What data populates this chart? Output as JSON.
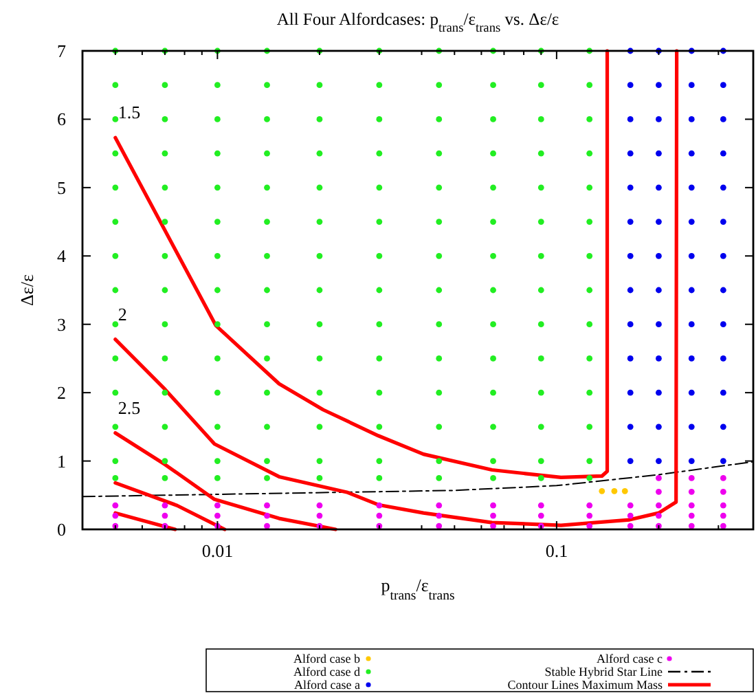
{
  "chart_data": {
    "type": "scatter",
    "title": "All Four Alfordcases: p$_{trans}$/ε$_{trans}$ vs. Δε/ε",
    "xlabel": "p$_{trans}$/ε$_{trans}$",
    "ylabel": "Δε/ε",
    "log": "x",
    "grid": false,
    "legend": "bottom",
    "xlim": [
      0.004,
      0.38
    ],
    "ylim": [
      0,
      7
    ],
    "xticks": [
      {
        "value": 0.005,
        "label": null
      },
      {
        "value": 0.006,
        "label": null
      },
      {
        "value": 0.007,
        "label": null
      },
      {
        "value": 0.008,
        "label": null
      },
      {
        "value": 0.009,
        "label": null
      },
      0.01,
      {
        "value": 0.02,
        "label": null
      },
      {
        "value": 0.03,
        "label": null
      },
      {
        "value": 0.04,
        "label": null
      },
      {
        "value": 0.05,
        "label": null
      },
      {
        "value": 0.06,
        "label": null
      },
      {
        "value": 0.07,
        "label": null
      },
      {
        "value": 0.08,
        "label": null
      },
      {
        "value": 0.09,
        "label": null
      },
      0.1,
      {
        "value": 0.2,
        "label": null
      },
      {
        "value": 0.3,
        "label": null
      }
    ],
    "yticks": [
      0,
      1,
      2,
      3,
      4,
      5,
      6,
      7
    ],
    "annotations": [
      "1.5",
      "2",
      "2.5"
    ],
    "series": [
      {
        "name": "Alford case b",
        "marker": "circle",
        "color": "#ffc800",
        "x": [
          0.136,
          0.148,
          0.159
        ],
        "values": [
          0.56,
          0.56,
          0.56
        ]
      },
      {
        "name": "Alford case d",
        "marker": "circle",
        "color": "#22ee22",
        "x": [
          0.005,
          0.005,
          0.005,
          0.005,
          0.005,
          0.005,
          0.005,
          0.005,
          0.005,
          0.005,
          0.005,
          0.005,
          0.005,
          0.005,
          0.007,
          0.007,
          0.007,
          0.007,
          0.007,
          0.007,
          0.007,
          0.007,
          0.007,
          0.007,
          0.007,
          0.007,
          0.007,
          0.007,
          0.01,
          0.01,
          0.01,
          0.01,
          0.01,
          0.01,
          0.01,
          0.01,
          0.01,
          0.01,
          0.01,
          0.01,
          0.01,
          0.01,
          0.014,
          0.014,
          0.014,
          0.014,
          0.014,
          0.014,
          0.014,
          0.014,
          0.014,
          0.014,
          0.014,
          0.014,
          0.014,
          0.014,
          0.02,
          0.02,
          0.02,
          0.02,
          0.02,
          0.02,
          0.02,
          0.02,
          0.02,
          0.02,
          0.02,
          0.02,
          0.02,
          0.02,
          0.03,
          0.03,
          0.03,
          0.03,
          0.03,
          0.03,
          0.03,
          0.03,
          0.03,
          0.03,
          0.03,
          0.03,
          0.03,
          0.03,
          0.045,
          0.045,
          0.045,
          0.045,
          0.045,
          0.045,
          0.045,
          0.045,
          0.045,
          0.045,
          0.045,
          0.045,
          0.045,
          0.045,
          0.065,
          0.065,
          0.065,
          0.065,
          0.065,
          0.065,
          0.065,
          0.065,
          0.065,
          0.065,
          0.065,
          0.065,
          0.065,
          0.065,
          0.09,
          0.09,
          0.09,
          0.09,
          0.09,
          0.09,
          0.09,
          0.09,
          0.09,
          0.09,
          0.09,
          0.09,
          0.09,
          0.09,
          0.125,
          0.125,
          0.125,
          0.125,
          0.125,
          0.125,
          0.125,
          0.125,
          0.125,
          0.125,
          0.125,
          0.125,
          0.125,
          0.125
        ],
        "values": [
          0.75,
          1,
          1.5,
          2,
          2.5,
          3,
          3.5,
          4,
          4.5,
          5,
          5.5,
          6,
          6.5,
          7,
          0.75,
          1,
          1.5,
          2,
          2.5,
          3,
          3.5,
          4,
          4.5,
          5,
          5.5,
          6,
          6.5,
          7,
          0.75,
          1,
          1.5,
          2,
          2.5,
          3,
          3.5,
          4,
          4.5,
          5,
          5.5,
          6,
          6.5,
          7,
          0.75,
          1,
          1.5,
          2,
          2.5,
          3,
          3.5,
          4,
          4.5,
          5,
          5.5,
          6,
          6.5,
          7,
          0.75,
          1,
          1.5,
          2,
          2.5,
          3,
          3.5,
          4,
          4.5,
          5,
          5.5,
          6,
          6.5,
          7,
          0.75,
          1,
          1.5,
          2,
          2.5,
          3,
          3.5,
          4,
          4.5,
          5,
          5.5,
          6,
          6.5,
          7,
          0.75,
          1,
          1.5,
          2,
          2.5,
          3,
          3.5,
          4,
          4.5,
          5,
          5.5,
          6,
          6.5,
          7,
          0.75,
          1,
          1.5,
          2,
          2.5,
          3,
          3.5,
          4,
          4.5,
          5,
          5.5,
          6,
          6.5,
          7,
          0.75,
          1,
          1.5,
          2,
          2.5,
          3,
          3.5,
          4,
          4.5,
          5,
          5.5,
          6,
          6.5,
          7,
          0.75,
          1,
          1.5,
          2,
          2.5,
          3,
          3.5,
          4,
          4.5,
          5,
          5.5,
          6,
          6.5,
          7
        ]
      },
      {
        "name": "Alford case a",
        "marker": "circle",
        "color": "#0000ee",
        "x": [
          0.165,
          0.165,
          0.165,
          0.165,
          0.165,
          0.165,
          0.165,
          0.165,
          0.165,
          0.165,
          0.165,
          0.165,
          0.165,
          0.2,
          0.2,
          0.2,
          0.2,
          0.2,
          0.2,
          0.2,
          0.2,
          0.2,
          0.2,
          0.2,
          0.2,
          0.2,
          0.25,
          0.25,
          0.25,
          0.25,
          0.25,
          0.25,
          0.25,
          0.25,
          0.25,
          0.25,
          0.25,
          0.25,
          0.25,
          0.31,
          0.31,
          0.31,
          0.31,
          0.31,
          0.31,
          0.31,
          0.31,
          0.31,
          0.31,
          0.31,
          0.31,
          0.31
        ],
        "values": [
          1,
          1.5,
          2,
          2.5,
          3,
          3.5,
          4,
          4.5,
          5,
          5.5,
          6,
          6.5,
          7,
          1,
          1.5,
          2,
          2.5,
          3,
          3.5,
          4,
          4.5,
          5,
          5.5,
          6,
          6.5,
          7,
          1,
          1.5,
          2,
          2.5,
          3,
          3.5,
          4,
          4.5,
          5,
          5.5,
          6,
          6.5,
          7,
          1,
          1.5,
          2,
          2.5,
          3,
          3.5,
          4,
          4.5,
          5,
          5.5,
          6,
          6.5,
          7
        ]
      },
      {
        "name": "Alford case c",
        "marker": "circle",
        "color": "#ee00ee",
        "x": [
          0.005,
          0.005,
          0.005,
          0.007,
          0.007,
          0.007,
          0.01,
          0.01,
          0.01,
          0.014,
          0.014,
          0.014,
          0.02,
          0.02,
          0.02,
          0.03,
          0.03,
          0.03,
          0.045,
          0.045,
          0.045,
          0.065,
          0.065,
          0.065,
          0.09,
          0.09,
          0.09,
          0.125,
          0.125,
          0.125,
          0.165,
          0.165,
          0.165,
          0.2,
          0.2,
          0.2,
          0.2,
          0.2,
          0.25,
          0.25,
          0.25,
          0.25,
          0.25,
          0.31,
          0.31,
          0.31,
          0.31,
          0.31
        ],
        "values": [
          0.05,
          0.2,
          0.35,
          0.05,
          0.2,
          0.35,
          0.05,
          0.2,
          0.35,
          0.05,
          0.2,
          0.35,
          0.05,
          0.2,
          0.35,
          0.05,
          0.2,
          0.35,
          0.05,
          0.2,
          0.35,
          0.05,
          0.2,
          0.35,
          0.05,
          0.2,
          0.35,
          0.05,
          0.2,
          0.35,
          0.05,
          0.2,
          0.35,
          0.05,
          0.2,
          0.35,
          0.55,
          0.75,
          0.05,
          0.2,
          0.35,
          0.55,
          0.75,
          0.05,
          0.2,
          0.35,
          0.55,
          0.75
        ]
      },
      {
        "name": "Stable Hybrid Star Line",
        "type": "line",
        "color": "#000000",
        "line_style": "dashed",
        "x": [
          0.004,
          0.05,
          0.1,
          0.2,
          0.38
        ],
        "values": [
          0.48,
          0.57,
          0.64,
          0.8,
          0.99
        ]
      },
      {
        "name": "Contour Lines Maximum Mass",
        "type": "line",
        "color": "#ff0000",
        "x": [
          0.005,
          0.0099,
          0.0152,
          0.0205,
          0.0298,
          0.0405,
          0.0645,
          0.103,
          0.136,
          0.141,
          0.141
        ],
        "values": [
          5.73,
          2.98,
          2.13,
          1.75,
          1.37,
          1.1,
          0.87,
          0.76,
          0.78,
          0.85,
          7
        ]
      },
      {
        "type": "line",
        "color": "#ff0000",
        "x": [
          0.005,
          0.007,
          0.0098,
          0.0152,
          0.0242,
          0.0298,
          0.0405,
          0.0645,
          0.103,
          0.164,
          0.2,
          0.225,
          0.226
        ],
        "values": [
          2.78,
          2.05,
          1.25,
          0.77,
          0.54,
          0.36,
          0.24,
          0.1,
          0.06,
          0.14,
          0.24,
          0.4,
          7
        ]
      },
      {
        "type": "line",
        "color": "#ff0000",
        "x": [
          0.005,
          0.007,
          0.0098,
          0.0152,
          0.0223
        ],
        "values": [
          1.41,
          0.95,
          0.44,
          0.16,
          0
        ]
      },
      {
        "type": "line",
        "color": "#ff0000",
        "x": [
          0.005,
          0.0076,
          0.0105
        ],
        "values": [
          0.68,
          0.35,
          0
        ]
      },
      {
        "type": "line",
        "color": "#ff0000",
        "x": [
          0.005,
          0.0075
        ],
        "values": [
          0.24,
          0
        ]
      }
    ]
  }
}
